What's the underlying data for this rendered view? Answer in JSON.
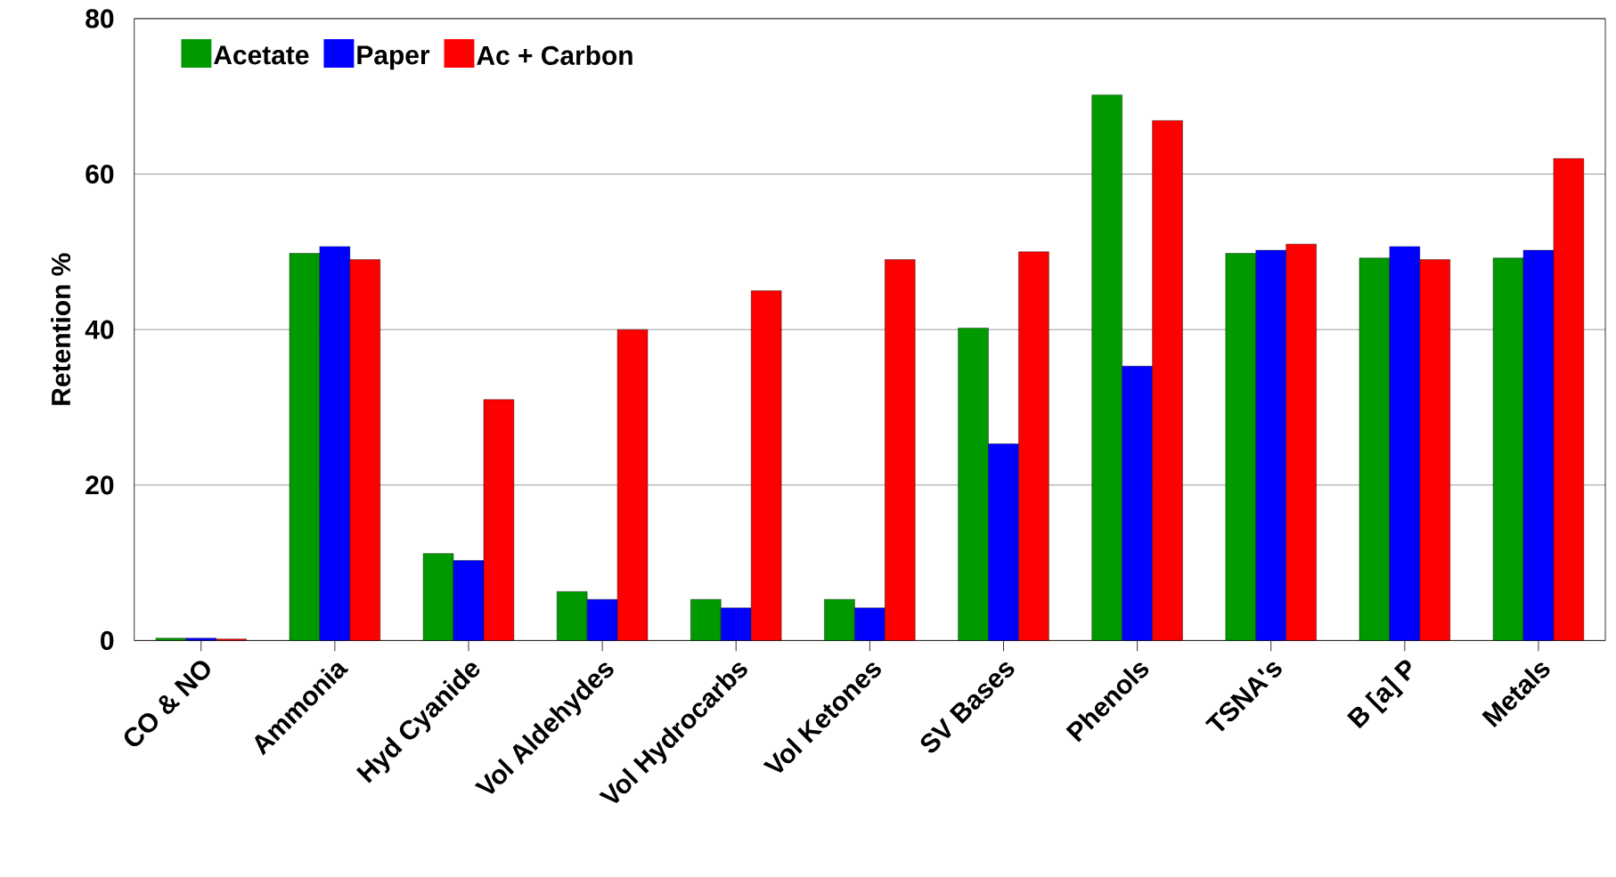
{
  "chart_data": {
    "type": "bar",
    "ylabel": "Retention %",
    "categories": [
      "CO & NO",
      "Ammonia",
      "Hyd Cyanide",
      "Vol Aldehydes",
      "Vol Hydrocarbs",
      "Vol Ketones",
      "SV Bases",
      "Phenols",
      "TSNA's",
      "B [a] P",
      "Metals"
    ],
    "series": [
      {
        "name": "Acetate",
        "color": "#009900",
        "values": [
          0.3,
          49.8,
          11.2,
          6.3,
          5.3,
          5.3,
          40.2,
          70.2,
          49.8,
          49.2,
          49.2
        ]
      },
      {
        "name": "Paper",
        "color": "#0000ff",
        "values": [
          0.3,
          50.7,
          10.3,
          5.3,
          4.2,
          4.2,
          25.3,
          35.3,
          50.2,
          50.7,
          50.2
        ]
      },
      {
        "name": "Ac + Carbon",
        "color": "#ff0000",
        "values": [
          0.2,
          49.0,
          31.0,
          40.0,
          45.0,
          49.0,
          50.0,
          66.9,
          51.0,
          49.0,
          62.0
        ]
      }
    ],
    "ylim": [
      0,
      80
    ],
    "yticks": [
      0,
      20,
      40,
      60,
      80
    ],
    "grid": "y",
    "legend": "top left"
  }
}
